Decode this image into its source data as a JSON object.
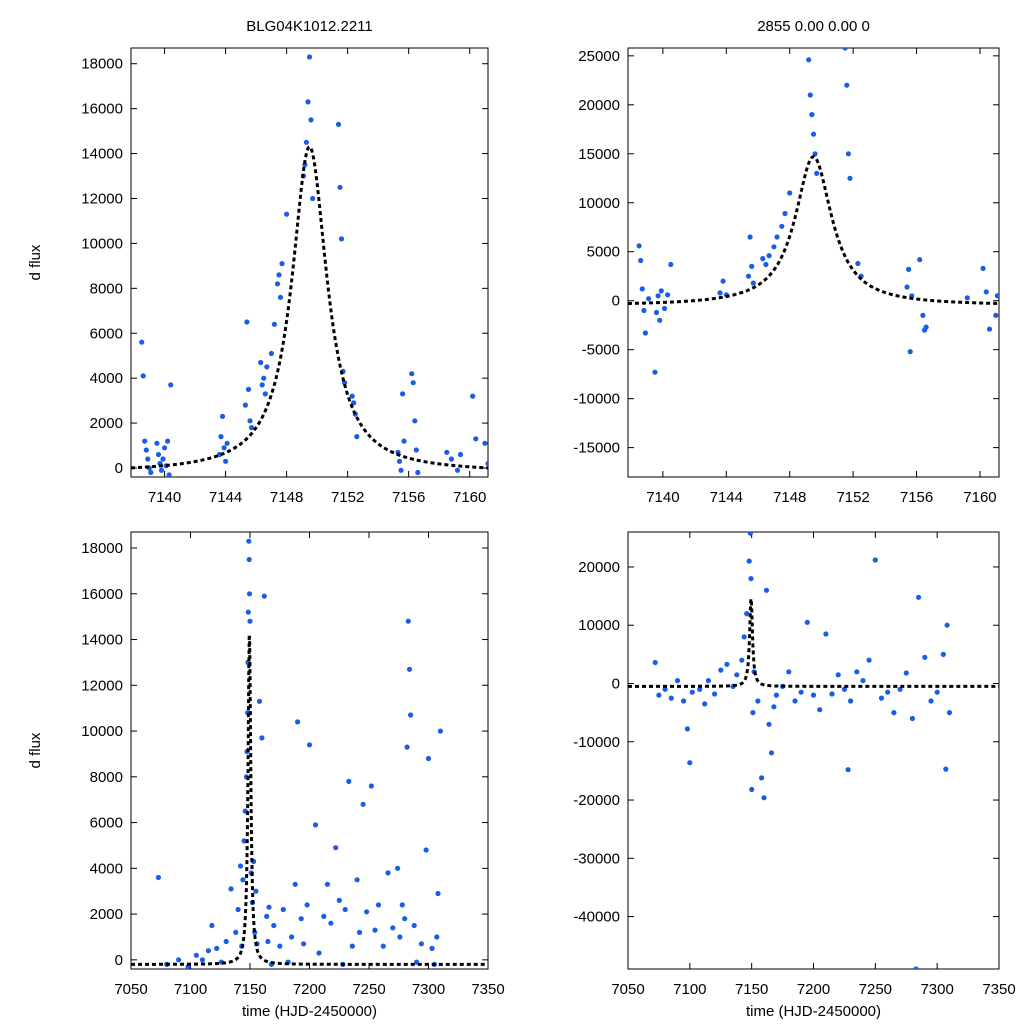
{
  "chart_data": [
    {
      "type": "scatter",
      "title": "BLG04K1012.2211",
      "xlabel": "",
      "ylabel": "d flux",
      "xlim": [
        7137.8,
        7161.2
      ],
      "ylim": [
        -400,
        18700
      ],
      "xticks": [
        7140,
        7144,
        7148,
        7152,
        7156,
        7160
      ],
      "yticks": [
        0,
        2000,
        4000,
        6000,
        8000,
        10000,
        12000,
        14000,
        16000,
        18000
      ],
      "grid": false,
      "fit": {
        "style": "black dashed",
        "t0": 7149.5,
        "peak": 14300,
        "width": 1.4,
        "baseline": -200
      },
      "marker_color": "#1a5ee8",
      "series": [
        {
          "name": "data",
          "x": [
            7138.5,
            7138.6,
            7138.7,
            7138.8,
            7138.9,
            7139,
            7139.1,
            7139.5,
            7139.6,
            7139.7,
            7139.8,
            7139.9,
            7140,
            7140.1,
            7140.2,
            7140.3,
            7140.4,
            7143.6,
            7143.7,
            7143.8,
            7143.9,
            7144,
            7144.1,
            7145.3,
            7145.4,
            7145.5,
            7145.6,
            7145.7,
            7146.3,
            7146.4,
            7146.5,
            7146.6,
            7146.7,
            7147,
            7147.2,
            7147.4,
            7147.5,
            7147.6,
            7147.7,
            7148,
            7149.1,
            7149.2,
            7149.3,
            7149.4,
            7149.5,
            7149.6,
            7149.7,
            7151.4,
            7151.5,
            7151.6,
            7151.7,
            7151.8,
            7152.3,
            7152.4,
            7152.5,
            7152.6,
            7155.3,
            7155.4,
            7155.5,
            7155.6,
            7155.7,
            7156.2,
            7156.3,
            7156.4,
            7156.5,
            7156.6,
            7158.5,
            7158.8,
            7159.2,
            7159.4,
            7160.2,
            7160.4,
            7161.0,
            7161.2
          ],
          "y": [
            5600,
            4100,
            1200,
            800,
            400,
            0,
            -200,
            1100,
            600,
            200,
            -100,
            400,
            900,
            100,
            1200,
            -300,
            3700,
            600,
            1400,
            2300,
            900,
            300,
            1100,
            2800,
            6500,
            3500,
            2100,
            1800,
            4700,
            3700,
            4000,
            3300,
            4500,
            5100,
            6400,
            8200,
            8600,
            7600,
            9100,
            11300,
            13000,
            13500,
            14500,
            16300,
            18300,
            15500,
            12000,
            15300,
            12500,
            10200,
            4300,
            3800,
            3200,
            2900,
            2400,
            1400,
            700,
            300,
            -100,
            3300,
            1200,
            4200,
            3800,
            2100,
            800,
            -200,
            700,
            400,
            -100,
            600,
            3200,
            1300,
            1100,
            200
          ]
        }
      ]
    },
    {
      "type": "scatter",
      "title": "2855  0.00  0.00  0",
      "xlabel": "",
      "ylabel": "",
      "xlim": [
        7137.8,
        7161.2
      ],
      "ylim": [
        -18000,
        25800
      ],
      "xticks": [
        7140,
        7144,
        7148,
        7152,
        7156,
        7160
      ],
      "yticks": [
        -15000,
        -10000,
        -5000,
        0,
        5000,
        10000,
        15000,
        20000,
        25000
      ],
      "grid": false,
      "fit": {
        "style": "black dashed",
        "t0": 7149.5,
        "peak": 14700,
        "width": 1.4,
        "baseline": -500
      },
      "marker_color": "#1a5ee8",
      "series": [
        {
          "name": "data",
          "x": [
            7138.5,
            7138.6,
            7138.7,
            7138.8,
            7138.9,
            7139.1,
            7139.5,
            7139.6,
            7139.7,
            7139.8,
            7139.9,
            7140.1,
            7140.3,
            7140.5,
            7143.6,
            7143.8,
            7144,
            7145.4,
            7145.5,
            7145.6,
            7145.7,
            7146.3,
            7146.5,
            7146.7,
            7147,
            7147.2,
            7147.5,
            7147.7,
            7148,
            7149.2,
            7149.3,
            7149.4,
            7149.5,
            7149.6,
            7149.7,
            7151.5,
            7151.6,
            7151.7,
            7151.8,
            7152.3,
            7152.5,
            7155.4,
            7155.5,
            7155.6,
            7155.7,
            7156.2,
            7156.4,
            7156.5,
            7156.6,
            7159.2,
            7160.2,
            7160.4,
            7160.6,
            7161.0,
            7161.1
          ],
          "y": [
            5600,
            4100,
            1200,
            -1000,
            -3300,
            200,
            -7300,
            -1200,
            500,
            -2000,
            1000,
            -800,
            600,
            3700,
            800,
            2000,
            600,
            2500,
            6500,
            3500,
            1800,
            4300,
            3700,
            4600,
            5500,
            6500,
            7600,
            8900,
            11000,
            24600,
            21000,
            19000,
            17000,
            15000,
            13000,
            25800,
            22000,
            15000,
            12500,
            3800,
            2500,
            1400,
            3200,
            -5200,
            500,
            4200,
            -1500,
            -3000,
            -2700,
            300,
            3300,
            900,
            -2900,
            -1500,
            500
          ]
        }
      ]
    },
    {
      "type": "scatter",
      "title": "",
      "xlabel": "time (HJD-2450000)",
      "ylabel": "d flux",
      "xlim": [
        7050,
        7350
      ],
      "ylim": [
        -400,
        18700
      ],
      "xticks": [
        7050,
        7100,
        7150,
        7200,
        7250,
        7300,
        7350
      ],
      "yticks": [
        0,
        2000,
        4000,
        6000,
        8000,
        10000,
        12000,
        14000,
        16000,
        18000
      ],
      "grid": false,
      "fit": {
        "style": "black dashed",
        "t0": 7149.5,
        "peak": 14300,
        "width": 1.4,
        "baseline": -200
      },
      "marker_color": "#1a5ee8",
      "series": [
        {
          "name": "data",
          "x": [
            7073,
            7080,
            7090,
            7098,
            7105,
            7110,
            7115,
            7118,
            7122,
            7126,
            7130,
            7134,
            7138,
            7140,
            7142,
            7143,
            7144,
            7145,
            7146,
            7147,
            7147.5,
            7148,
            7148.3,
            7148.6,
            7149,
            7149.3,
            7149.6,
            7150,
            7151,
            7152,
            7153,
            7154,
            7155,
            7156,
            7158,
            7160,
            7162,
            7164,
            7165,
            7166,
            7168,
            7170,
            7175,
            7178,
            7182,
            7185,
            7188,
            7190,
            7193,
            7195,
            7198,
            7200,
            7205,
            7208,
            7212,
            7215,
            7218,
            7222,
            7225,
            7228,
            7230,
            7233,
            7236,
            7240,
            7242,
            7245,
            7248,
            7252,
            7255,
            7258,
            7262,
            7266,
            7270,
            7274,
            7276,
            7278,
            7280,
            7282,
            7283,
            7284,
            7285,
            7288,
            7290,
            7294,
            7298,
            7300,
            7303,
            7305,
            7307,
            7308,
            7310
          ],
          "y": [
            3600,
            -200,
            0,
            -300,
            200,
            0,
            400,
            1500,
            500,
            -100,
            800,
            3100,
            1200,
            2200,
            4100,
            600,
            3500,
            5200,
            6500,
            8000,
            9100,
            10800,
            13000,
            15200,
            18300,
            17500,
            16000,
            14800,
            3800,
            2500,
            4300,
            1200,
            3000,
            700,
            11300,
            9700,
            15900,
            1900,
            800,
            2300,
            -200,
            1500,
            600,
            2200,
            -100,
            1000,
            3300,
            10400,
            1800,
            700,
            2400,
            9400,
            5900,
            300,
            1900,
            3300,
            1600,
            4900,
            2600,
            -200,
            2200,
            7800,
            600,
            3500,
            1200,
            6800,
            2100,
            7600,
            1300,
            2400,
            600,
            3800,
            1400,
            4000,
            1000,
            2400,
            1800,
            9300,
            14800,
            12700,
            10700,
            1500,
            -100,
            700,
            4800,
            8800,
            500,
            -200,
            1000,
            2900,
            10000
          ]
        }
      ]
    },
    {
      "type": "scatter",
      "title": "",
      "xlabel": "time (HJD-2450000)",
      "ylabel": "",
      "xlim": [
        7050,
        7350
      ],
      "ylim": [
        -49000,
        26000
      ],
      "xticks": [
        7050,
        7100,
        7150,
        7200,
        7250,
        7300,
        7350
      ],
      "yticks": [
        -40000,
        -30000,
        -20000,
        -10000,
        0,
        10000,
        20000
      ],
      "grid": false,
      "fit": {
        "style": "black dashed",
        "t0": 7149.5,
        "peak": 14700,
        "width": 1.4,
        "baseline": -500
      },
      "marker_color": "#1a5ee8",
      "series": [
        {
          "name": "data",
          "x": [
            7072,
            7075,
            7080,
            7085,
            7090,
            7095,
            7098,
            7100,
            7102,
            7108,
            7112,
            7115,
            7120,
            7125,
            7130,
            7135,
            7138,
            7142,
            7144,
            7146,
            7148,
            7149,
            7149.5,
            7150,
            7151,
            7152,
            7155,
            7158,
            7160,
            7162,
            7164,
            7166,
            7168,
            7170,
            7175,
            7180,
            7185,
            7190,
            7195,
            7200,
            7205,
            7210,
            7215,
            7220,
            7225,
            7228,
            7230,
            7235,
            7240,
            7245,
            7250,
            7255,
            7260,
            7265,
            7270,
            7275,
            7280,
            7283,
            7285,
            7290,
            7295,
            7300,
            7305,
            7307,
            7308,
            7310
          ],
          "y": [
            3600,
            -2000,
            -1000,
            -2500,
            500,
            -3000,
            -7800,
            -13600,
            -1500,
            -1000,
            -3500,
            500,
            -1800,
            2300,
            3300,
            -500,
            1500,
            4000,
            8000,
            12000,
            21000,
            25800,
            18000,
            -18200,
            -5000,
            2000,
            -3000,
            -16200,
            -19600,
            16000,
            -7000,
            -11900,
            -4000,
            -2000,
            -500,
            2000,
            -3000,
            -1500,
            10500,
            -2000,
            -4500,
            8500,
            -1800,
            1500,
            -1000,
            -14800,
            -3000,
            2000,
            500,
            4000,
            21200,
            -2500,
            -1500,
            -5000,
            -1000,
            1800,
            -6000,
            -49000,
            14800,
            4500,
            -3000,
            -1500,
            5000,
            -14700,
            10000,
            -5000
          ]
        }
      ]
    }
  ]
}
